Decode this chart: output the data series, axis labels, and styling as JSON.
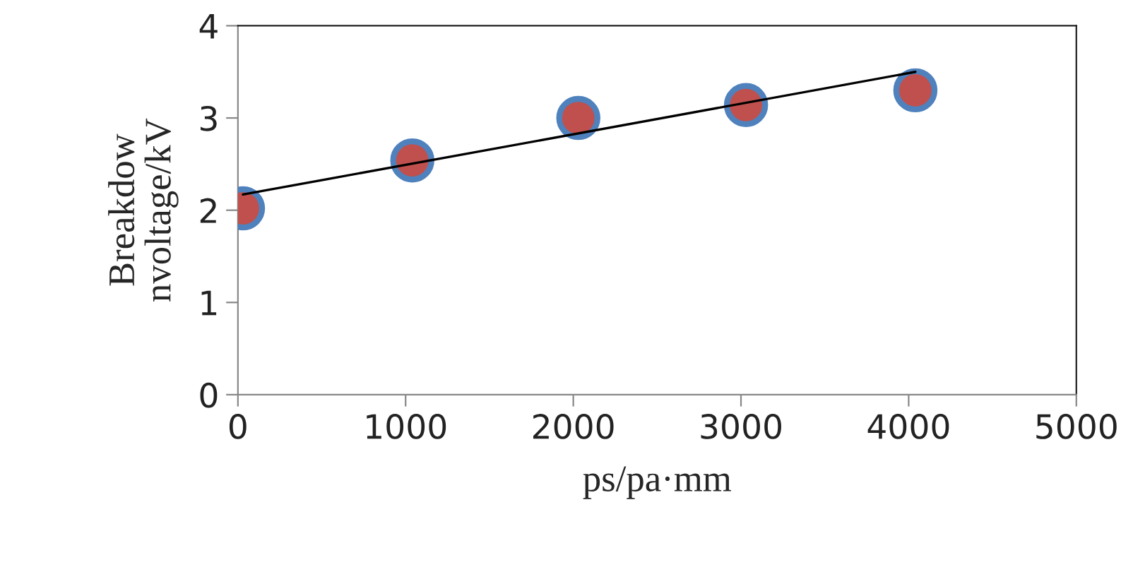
{
  "chart_data": {
    "type": "scatter",
    "xlabel": "ps/pa·mm",
    "ylabel": "Breakdow\nnvoltage/kV",
    "xlim": [
      0,
      5000
    ],
    "xticks": [
      0,
      1000,
      2000,
      3000,
      4000,
      5000
    ],
    "ylim": [
      0,
      4
    ],
    "yticks": [
      0,
      1,
      2,
      3,
      4
    ],
    "grid": false,
    "series": [
      {
        "marker": "circle",
        "color": "#c0504d",
        "x": [
          30,
          1040,
          2030,
          3030,
          4040
        ],
        "values": [
          2.02,
          2.54,
          3.0,
          3.14,
          3.3
        ]
      },
      {
        "type": "line",
        "marker": "none",
        "color": "#000000",
        "x": [
          30,
          4040
        ],
        "values": [
          2.17,
          3.5
        ]
      }
    ]
  }
}
